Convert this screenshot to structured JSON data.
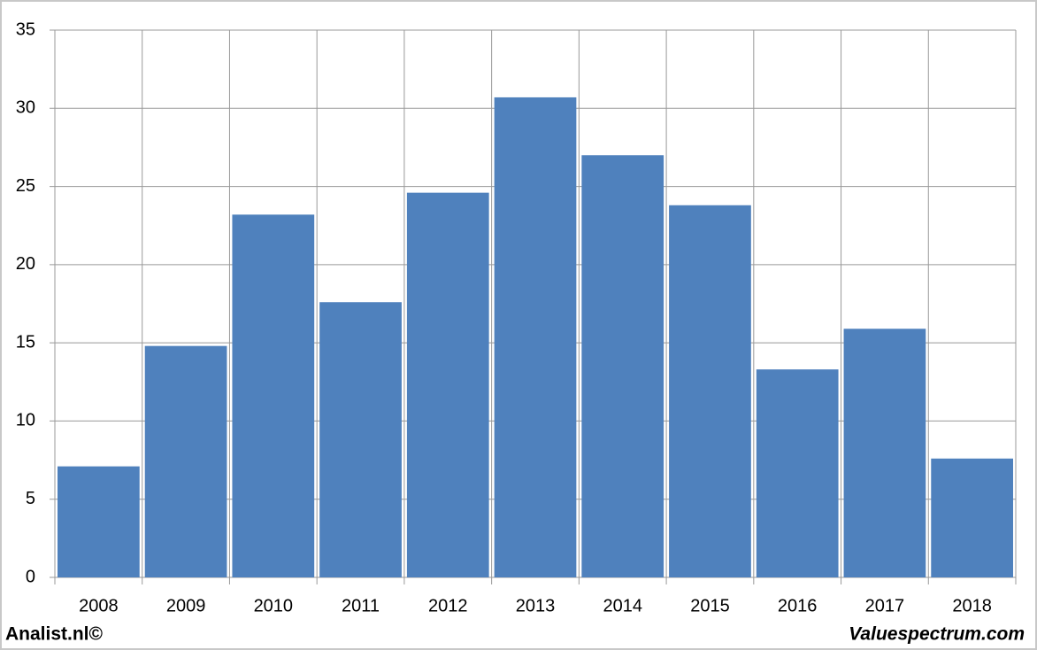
{
  "chart_data": {
    "type": "bar",
    "categories": [
      "2008",
      "2009",
      "2010",
      "2011",
      "2012",
      "2013",
      "2014",
      "2015",
      "2016",
      "2017",
      "2018"
    ],
    "values": [
      7.1,
      14.8,
      23.2,
      17.6,
      24.6,
      30.7,
      27.0,
      23.8,
      13.3,
      15.9,
      7.6
    ],
    "color": "#4f81bd",
    "ylim": [
      0,
      35
    ],
    "yticks": [
      0,
      5,
      10,
      15,
      20,
      25,
      30,
      35
    ],
    "grid": true,
    "credits": [
      "Analist.nl©",
      "Valuespectrum.com"
    ]
  }
}
